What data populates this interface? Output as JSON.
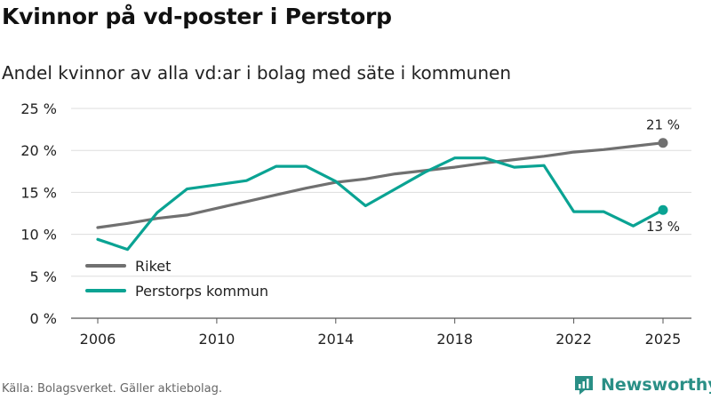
{
  "title": "Kvinnor på vd-poster i Perstorp",
  "subtitle": "Andel kvinnor av alla vd:ar i bolag med säte i kommunen",
  "source": "Källa: Bolagsverket. Gäller aktiebolag.",
  "brand": "Newsworthy",
  "chart_data": {
    "type": "line",
    "title": "Kvinnor på vd-poster i Perstorp",
    "subtitle": "Andel kvinnor av alla vd:ar i bolag med säte i kommunen",
    "xlabel": "",
    "ylabel": "",
    "x": [
      2006,
      2007,
      2008,
      2009,
      2010,
      2011,
      2012,
      2013,
      2014,
      2015,
      2016,
      2017,
      2018,
      2019,
      2020,
      2021,
      2022,
      2023,
      2024,
      2025
    ],
    "xticks": [
      2006,
      2010,
      2014,
      2018,
      2022,
      2025
    ],
    "xlim": [
      2006,
      2025
    ],
    "ylim": [
      0,
      25
    ],
    "yticks": [
      {
        "value": 0,
        "label": "0 %"
      },
      {
        "value": 5,
        "label": "5 %"
      },
      {
        "value": 10,
        "label": "10 %"
      },
      {
        "value": 15,
        "label": "15 %"
      },
      {
        "value": 20,
        "label": "20 %"
      },
      {
        "value": 25,
        "label": "25 %"
      }
    ],
    "grid": true,
    "legend_position": "bottom-left",
    "series": [
      {
        "name": "Riket",
        "color": "#707070",
        "values": [
          10.8,
          11.3,
          11.9,
          12.3,
          13.1,
          13.9,
          14.7,
          15.5,
          16.2,
          16.6,
          17.2,
          17.6,
          18.0,
          18.5,
          18.9,
          19.3,
          19.8,
          20.1,
          20.5,
          20.9
        ],
        "end_label": "21 %"
      },
      {
        "name": "Perstorps kommun",
        "color": "#0aa393",
        "values": [
          9.4,
          8.2,
          12.6,
          15.4,
          15.9,
          16.4,
          18.1,
          18.1,
          16.3,
          13.4,
          15.4,
          17.4,
          19.1,
          19.1,
          18.0,
          18.2,
          12.7,
          12.7,
          11.0,
          12.9
        ],
        "end_label": "13 %"
      }
    ]
  }
}
